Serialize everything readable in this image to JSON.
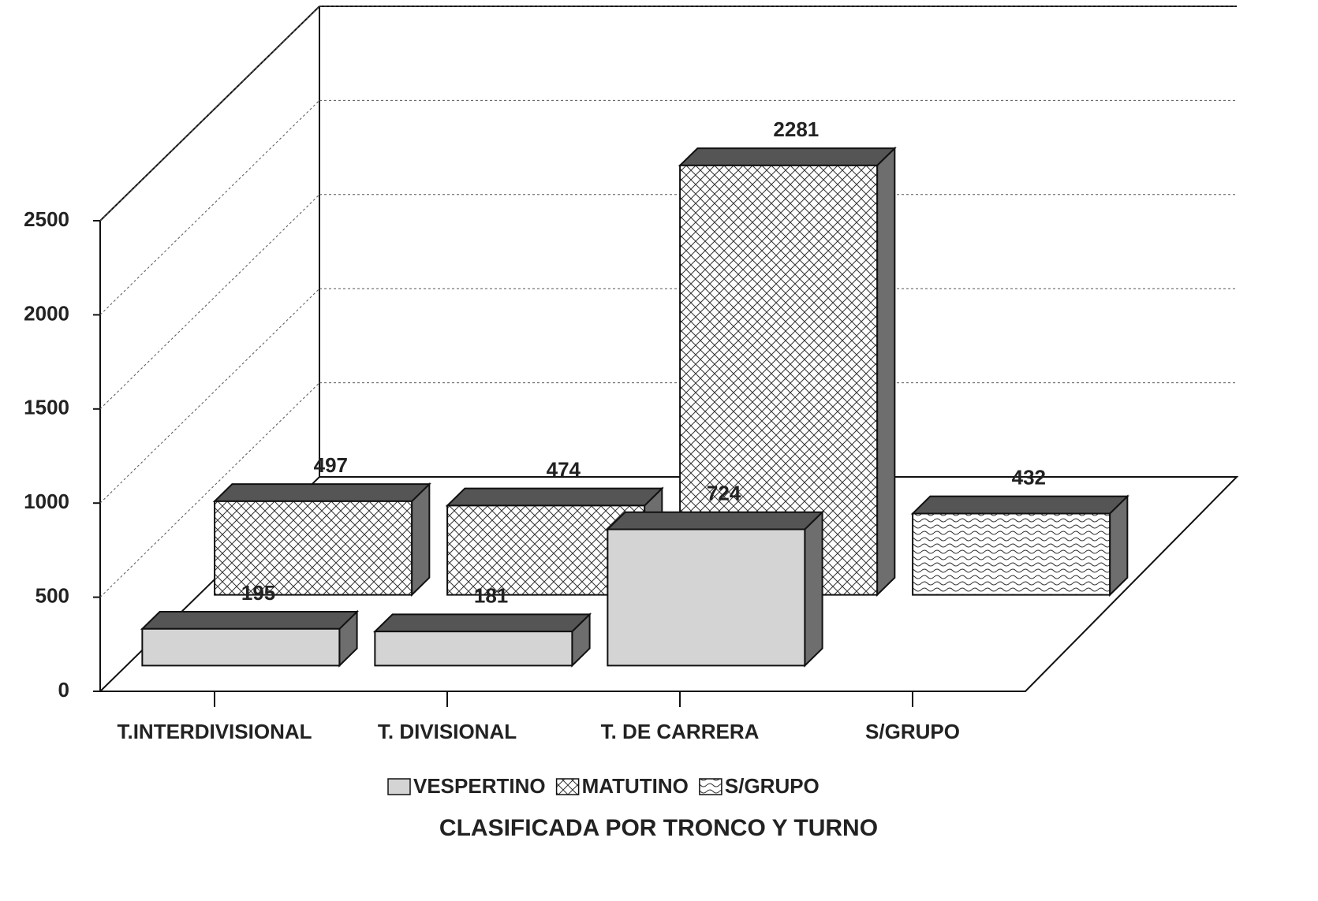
{
  "chart_data": {
    "type": "bar3d",
    "title": "CLASIFICADA POR TRONCO Y TURNO",
    "categories": [
      "T.INTERDIVISIONAL",
      "T. DIVISIONAL",
      "T. DE CARRERA",
      "S/GRUPO"
    ],
    "series": [
      {
        "name": "VESPERTINO",
        "color": "#d4d4d4",
        "values": [
          195,
          181,
          724,
          null
        ]
      },
      {
        "name": "MATUTINO",
        "color": "#ffffff",
        "values": [
          497,
          474,
          2281,
          null
        ]
      },
      {
        "name": "S/GRUPO",
        "color": "#ffffff",
        "values": [
          null,
          null,
          null,
          432
        ]
      }
    ],
    "ylim": [
      0,
      2500
    ],
    "yticks": [
      0,
      500,
      1000,
      1500,
      2000,
      2500
    ],
    "grid": true
  }
}
